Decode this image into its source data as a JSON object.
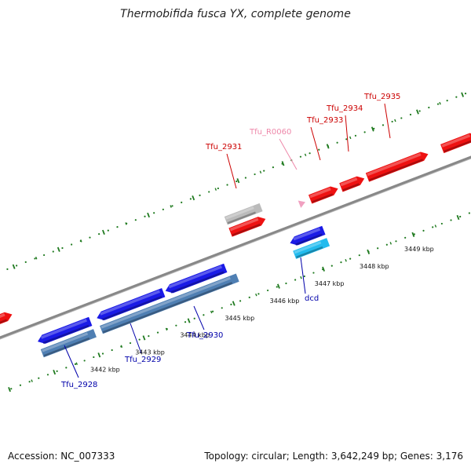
{
  "title": "Thermobifida fusca YX, complete genome",
  "footer": {
    "accession": "Accession: NC_007333",
    "topology": "Topology: circular; Length: 3,642,249 bp; Genes: 3,176"
  },
  "colors": {
    "backbone": "#888888",
    "ticks": "#1f7a1f",
    "red_gene": "#ee1111",
    "blue_gene": "#1a1ae6",
    "steel_gene": "#4f7fb3",
    "cyan_gene": "#22bbee",
    "gray_gene": "#bbbbbb",
    "pink_gene": "#f0a0c0",
    "red_label": "#cc0000",
    "blue_label": "#0000aa",
    "pink_label": "#ee88aa"
  },
  "ticks": [
    "3442 kbp",
    "3443 kbp",
    "3444 kbp",
    "3445 kbp",
    "3446 kbp",
    "3447 kbp",
    "3448 kbp",
    "3449 kbp"
  ],
  "labels": [
    {
      "text": "Tfu_2931",
      "color": "red"
    },
    {
      "text": "Tfu_R0060",
      "color": "pink"
    },
    {
      "text": "Tfu_2933",
      "color": "red"
    },
    {
      "text": "Tfu_2934",
      "color": "red"
    },
    {
      "text": "Tfu_2935",
      "color": "red"
    },
    {
      "text": "dcd",
      "color": "blue"
    },
    {
      "text": "Tfu_2930",
      "color": "blue"
    },
    {
      "text": "Tfu_2929",
      "color": "blue"
    },
    {
      "text": "Tfu_2928",
      "color": "blue"
    }
  ]
}
